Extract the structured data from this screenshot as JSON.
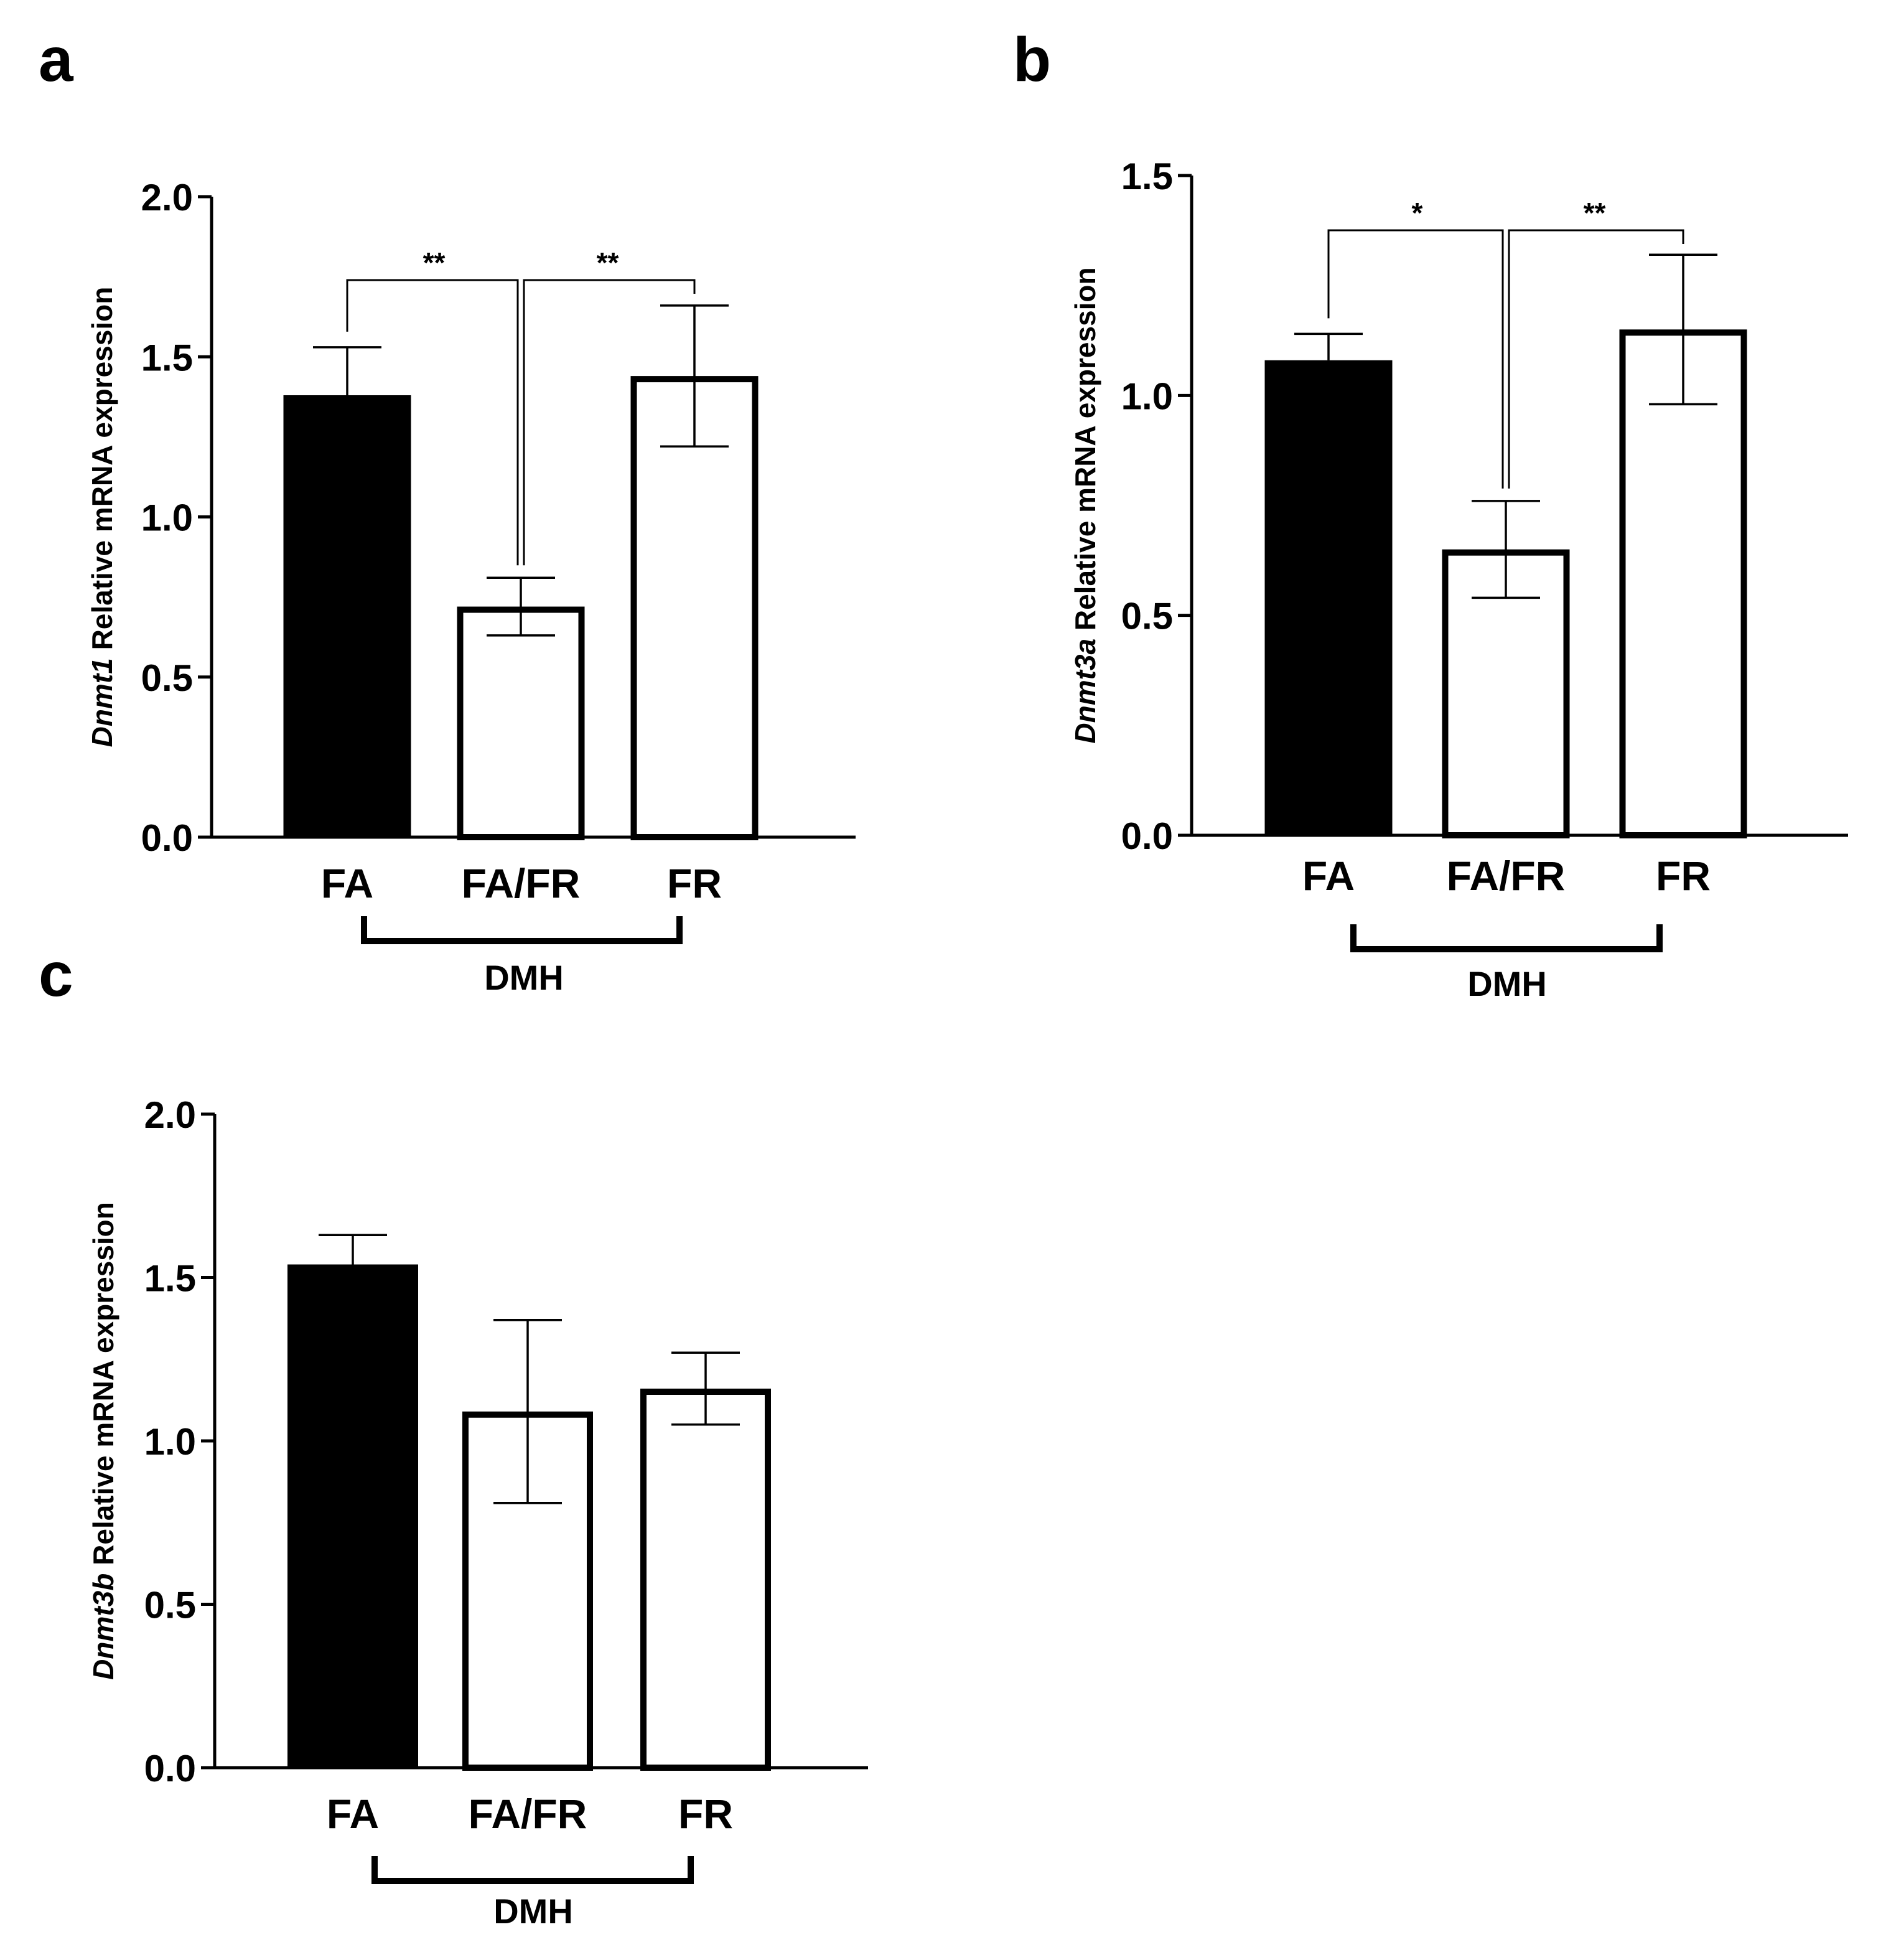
{
  "chart_data": [
    {
      "panel": "a",
      "type": "bar",
      "categories": [
        "FA",
        "FA/FR",
        "FR"
      ],
      "values": [
        1.38,
        0.72,
        1.44
      ],
      "errors": [
        0.15,
        0.09,
        0.22
      ],
      "fills": [
        "#000000",
        "#ffffff",
        "#ffffff"
      ],
      "ylabel_gene": "Dnmt1",
      "ylabel_rest": " Relative mRNA expression",
      "ylim": [
        0,
        2.0
      ],
      "ytick_values": [
        0,
        0.5,
        1.0,
        1.5,
        2.0
      ],
      "ytick_labels": [
        "0.0",
        "0.5",
        "1.0",
        "1.5",
        "2.0"
      ],
      "group_label": "DMH",
      "significance": [
        {
          "from": "FA",
          "to": "FA/FR",
          "label": "**"
        },
        {
          "from": "FA/FR",
          "to": "FR",
          "label": "**"
        }
      ]
    },
    {
      "panel": "b",
      "type": "bar",
      "categories": [
        "FA",
        "FA/FR",
        "FR"
      ],
      "values": [
        1.08,
        0.65,
        1.15
      ],
      "errors": [
        0.06,
        0.11,
        0.17
      ],
      "fills": [
        "#000000",
        "#ffffff",
        "#ffffff"
      ],
      "ylabel_gene": "Dnmt3a",
      "ylabel_rest": " Relative mRNA expression",
      "ylim": [
        0,
        1.5
      ],
      "ytick_values": [
        0,
        0.5,
        1.0,
        1.5
      ],
      "ytick_labels": [
        "0.0",
        "0.5",
        "1.0",
        "1.5"
      ],
      "group_label": "DMH",
      "significance": [
        {
          "from": "FA",
          "to": "FA/FR",
          "label": "*"
        },
        {
          "from": "FA/FR",
          "to": "FR",
          "label": "**"
        }
      ]
    },
    {
      "panel": "c",
      "type": "bar",
      "categories": [
        "FA",
        "FA/FR",
        "FR"
      ],
      "values": [
        1.54,
        1.09,
        1.16
      ],
      "errors": [
        0.09,
        0.28,
        0.11
      ],
      "fills": [
        "#000000",
        "#ffffff",
        "#ffffff"
      ],
      "ylabel_gene": "Dnmt3b",
      "ylabel_rest": " Relative mRNA expression",
      "ylim": [
        0,
        2.0
      ],
      "ytick_values": [
        0,
        0.5,
        1.0,
        1.5,
        2.0
      ],
      "ytick_labels": [
        "0.0",
        "0.5",
        "1.0",
        "1.5",
        "2.0"
      ],
      "group_label": "DMH",
      "significance": []
    }
  ]
}
